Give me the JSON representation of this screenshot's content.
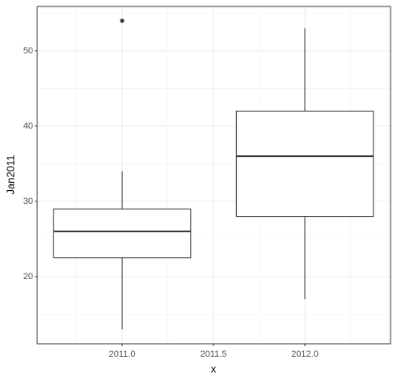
{
  "chart_data": {
    "type": "boxplot",
    "x_label": "x",
    "y_label": "Jan2011",
    "x": [
      2011,
      2012
    ],
    "whisker_low": [
      13,
      17
    ],
    "q1": [
      22.5,
      28
    ],
    "median": [
      26,
      36
    ],
    "q3": [
      29,
      42
    ],
    "whisker_high": [
      34,
      53
    ],
    "outliers": [
      [
        54
      ],
      []
    ],
    "color": "#333333",
    "xlim": [
      2010.535,
      2012.469
    ],
    "xticks": [
      {
        "value": 2011,
        "label": "2011.0"
      },
      {
        "value": 2011.5,
        "label": "2011.5"
      },
      {
        "value": 2012,
        "label": "2012.0"
      }
    ],
    "ylim": [
      11.08,
      55.9
    ],
    "yticks": [
      20,
      30,
      40,
      50
    ],
    "grid": true
  }
}
